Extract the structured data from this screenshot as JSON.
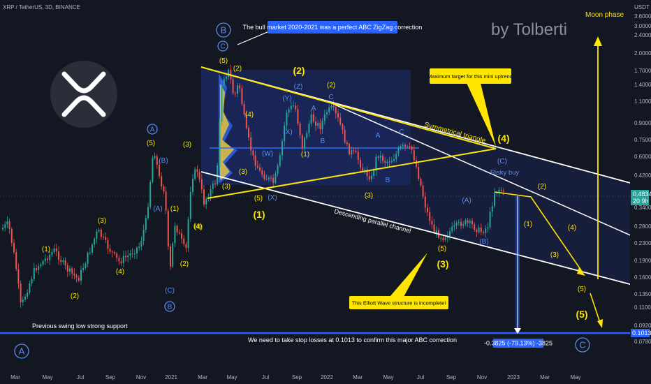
{
  "symbol_title": "XRP / TetherUS, 3D, BINANCE",
  "watermark": "by Tolberti",
  "chart_data": {
    "type": "candlestick",
    "title": "XRP / TetherUS, 3D, BINANCE",
    "y_axis_unit": "USDT",
    "y_scale": "log",
    "y_ticks": [
      "3.6000",
      "3.0000",
      "2.4000",
      "2.0000",
      "1.7000",
      "1.4000",
      "1.1000",
      "0.9000",
      "0.7500",
      "0.6000",
      "0.4200",
      "0.3400",
      "0.2800",
      "0.2300",
      "0.1900",
      "0.1600",
      "0.1350",
      "0.1100",
      "0.0920",
      "0.0780"
    ],
    "x_ticks": [
      "Mar",
      "May",
      "Jul",
      "Sep",
      "Nov",
      "2021",
      "Mar",
      "May",
      "Jul",
      "Sep",
      "2022",
      "Mar",
      "May",
      "Jul",
      "Sep",
      "Nov",
      "2023",
      "Mar",
      "May"
    ],
    "current_price_label": "0.4834",
    "current_price_sub": "20 9h",
    "support_price_label": "0.1013",
    "measure_label": "-0.3825 (-79.13%) -3825",
    "annotations": {
      "callout_top": "The bull market 2020-2021 was a perfect ABC ZigZag correction",
      "callout_target": "Maximum target for this mini uptrend",
      "callout_incomplete": "This Elliott Wave structure is incomplete!",
      "triangle_label": "Symmetrical triangle",
      "channel_label": "Descending parallel channel",
      "moon_label": "Moon phase",
      "risky_label": "Risky buy",
      "support_label": "Previous swing low strong support",
      "stop_label": "We need to take stop losses at 0.1013 to confirm this major ABC correction"
    },
    "wave_labels": {
      "big_B": "B",
      "big_C_top": "C",
      "big_A": "A",
      "big_C_future": "C",
      "A_2020": "A",
      "B_2020": "B",
      "w5_2020": "(5)",
      "w3_2020": "(3)",
      "wB_2020": "(B)",
      "wA_2020": "(A)",
      "w1_2020": "(1)",
      "w2_2020": "(2)",
      "w4_2020": "(4)",
      "wC_2020": "(C)",
      "w1_early": "(1)",
      "w2_early": "(2)",
      "w3_early": "(3)",
      "w4_early": "(4)",
      "top5": "(5)",
      "top2": "(2)",
      "wave2_label": "(2)",
      "top2b": "(2)",
      "Z": "(Z)",
      "Y": "(Y)",
      "X": "(X)",
      "W": "(W)",
      "A_mid": "A",
      "C_mid": "C",
      "B_mid": "B",
      "w4_mid": "(4)",
      "w1_mid": "(1)",
      "w3_mid": "(3)",
      "w5_low": "(5)",
      "wave1_label": "(1)",
      "X_low": "(X)",
      "w3_top": "(3)",
      "w4_top": "(4)",
      "w3_2022": "(3)",
      "A_2022": "A",
      "C_2022": "C",
      "B_2022": "B",
      "w5_2022": "(5)",
      "wave3_label": "(3)",
      "wA_2022": "(A)",
      "wB_2022": "(B)",
      "wC_2022": "(C)",
      "wave4_label": "(4)",
      "f2": "(2)",
      "f1": "(1)",
      "f4": "(4)",
      "f3": "(3)",
      "f5": "(5)",
      "wave5_label": "(5)"
    }
  }
}
